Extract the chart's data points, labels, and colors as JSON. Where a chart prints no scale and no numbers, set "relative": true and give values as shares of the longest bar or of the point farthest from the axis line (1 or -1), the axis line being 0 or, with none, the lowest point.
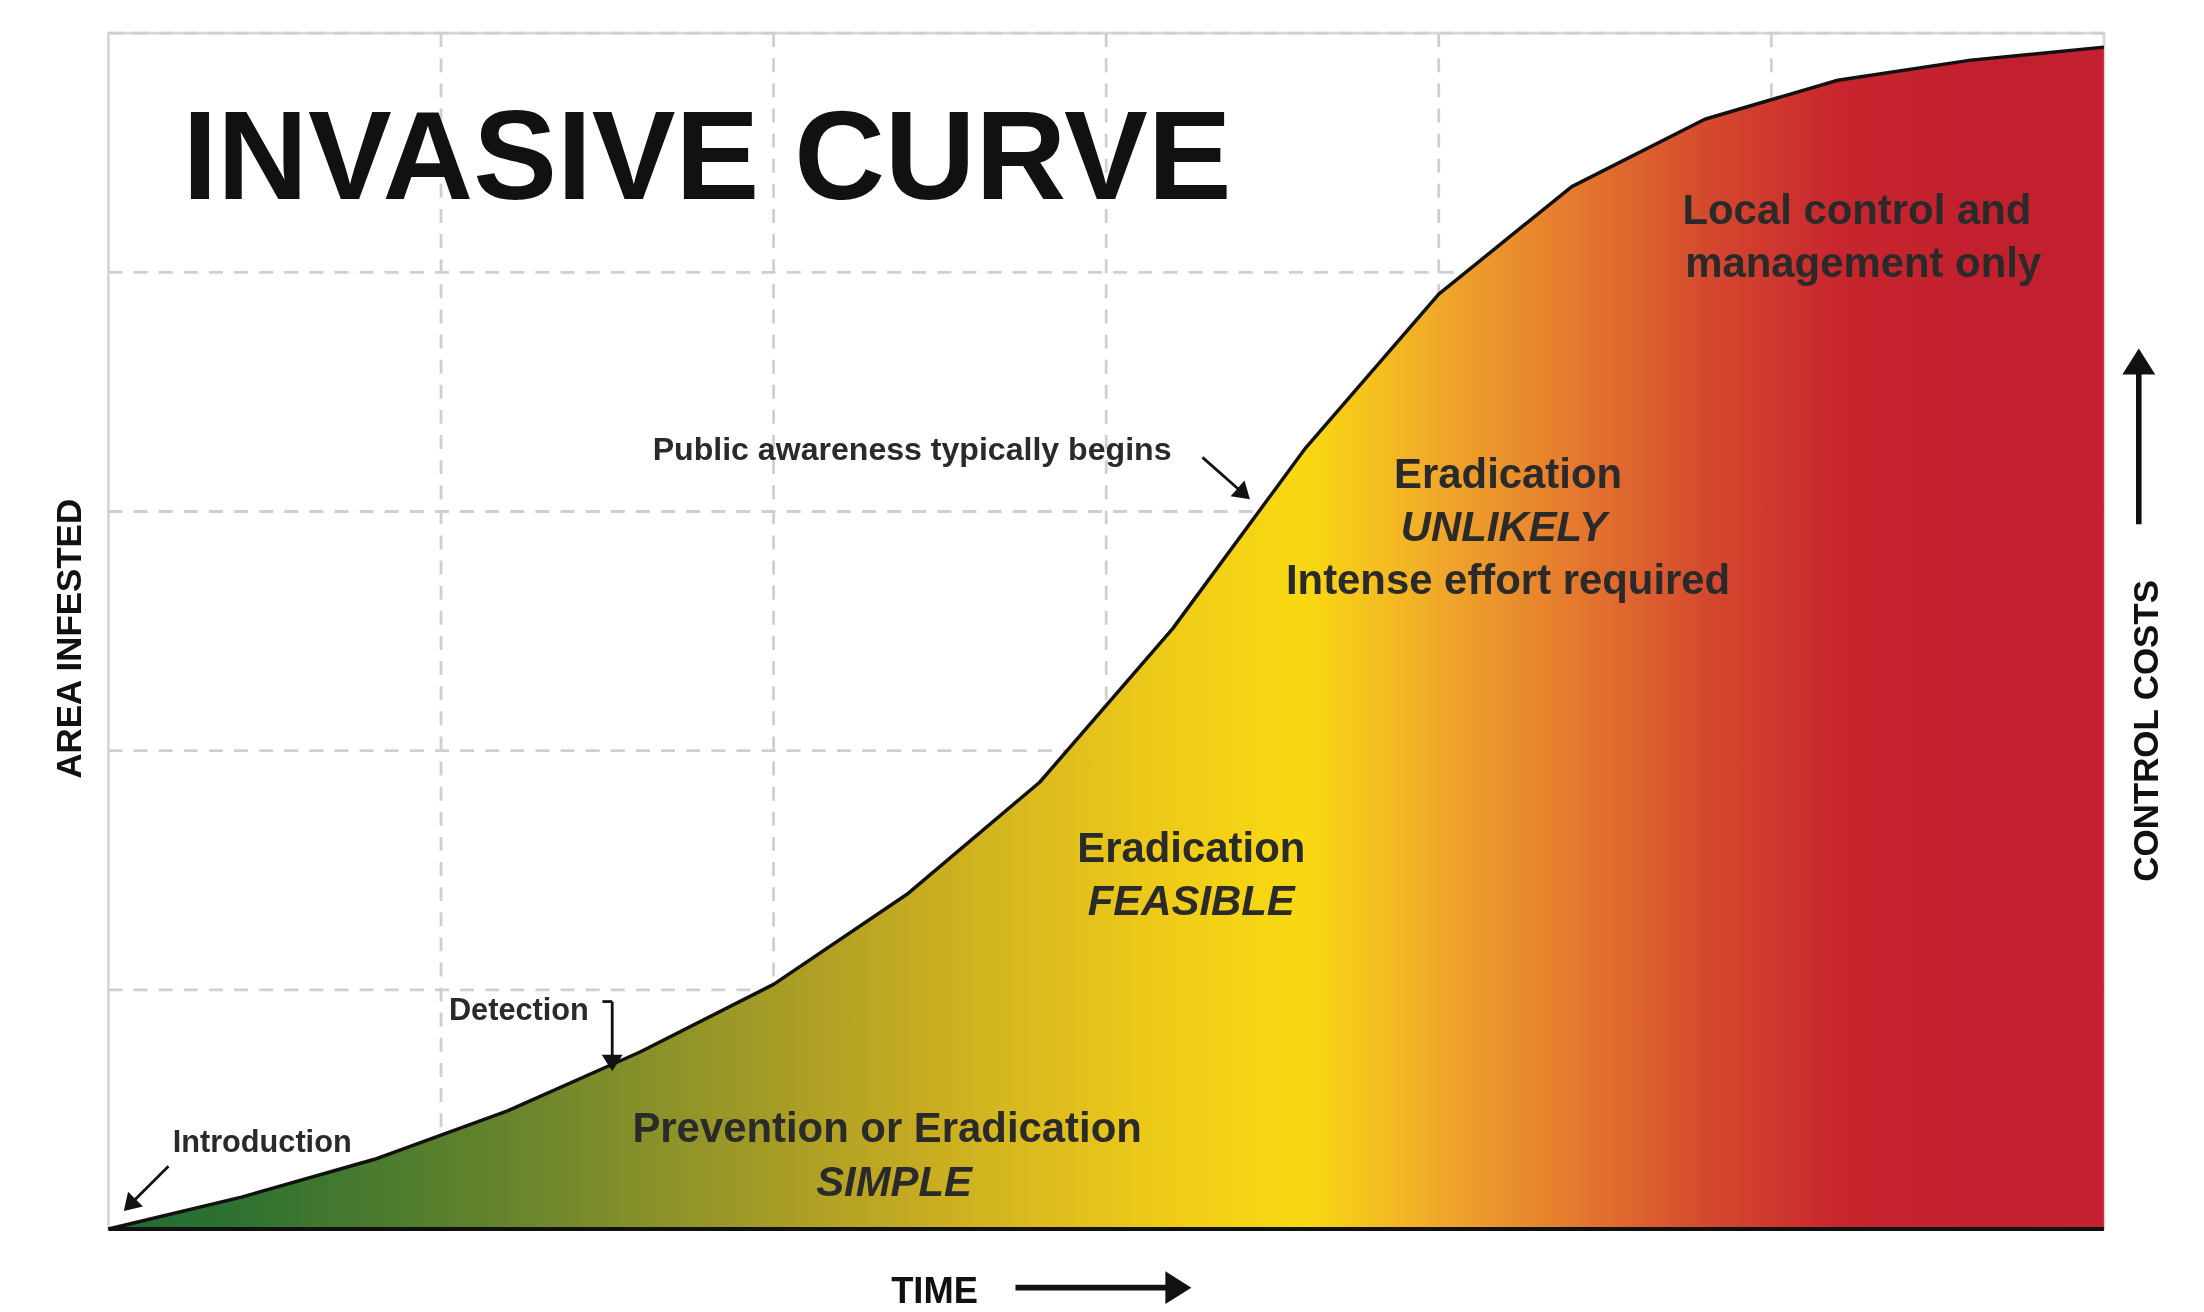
{
  "chart_data": {
    "type": "area",
    "title": "INVASIVE CURVE",
    "xlabel": "TIME",
    "ylabel": "AREA INFESTED",
    "y2label": "CONTROL COSTS",
    "relative": true,
    "grid": true,
    "categories": [
      null,
      null,
      null,
      null,
      null,
      null,
      null,
      null,
      null,
      null,
      null,
      null,
      null,
      null,
      null,
      null
    ],
    "series": [
      {
        "color": "#111111",
        "values": [
          0,
          0.027,
          0.059,
          0.1,
          0.15,
          0.207,
          0.283,
          0.378,
          0.508,
          0.661,
          0.791,
          0.882,
          0.939,
          0.972,
          0.989,
          1
        ],
        "colors": [
          "#1f6b32",
          "#2f7231",
          "#4a7a2e",
          "#67842c",
          "#86902a",
          "#a59c26",
          "#c4aa22",
          "#dcbc1e",
          "#f0cc18",
          "#f9d912",
          "#f0a82a",
          "#e57a2e",
          "#d54a2e",
          "#c8262e",
          "#c2202e",
          "#c42030"
        ]
      }
    ],
    "annotations": [
      "Introduction",
      "Detection",
      "Public awareness typically begins",
      "Prevention or Eradication",
      "SIMPLE",
      "Eradication",
      "FEASIBLE",
      "Eradication",
      "UNLIKELY",
      "Intense effort required",
      "Local control and",
      "management only"
    ]
  }
}
